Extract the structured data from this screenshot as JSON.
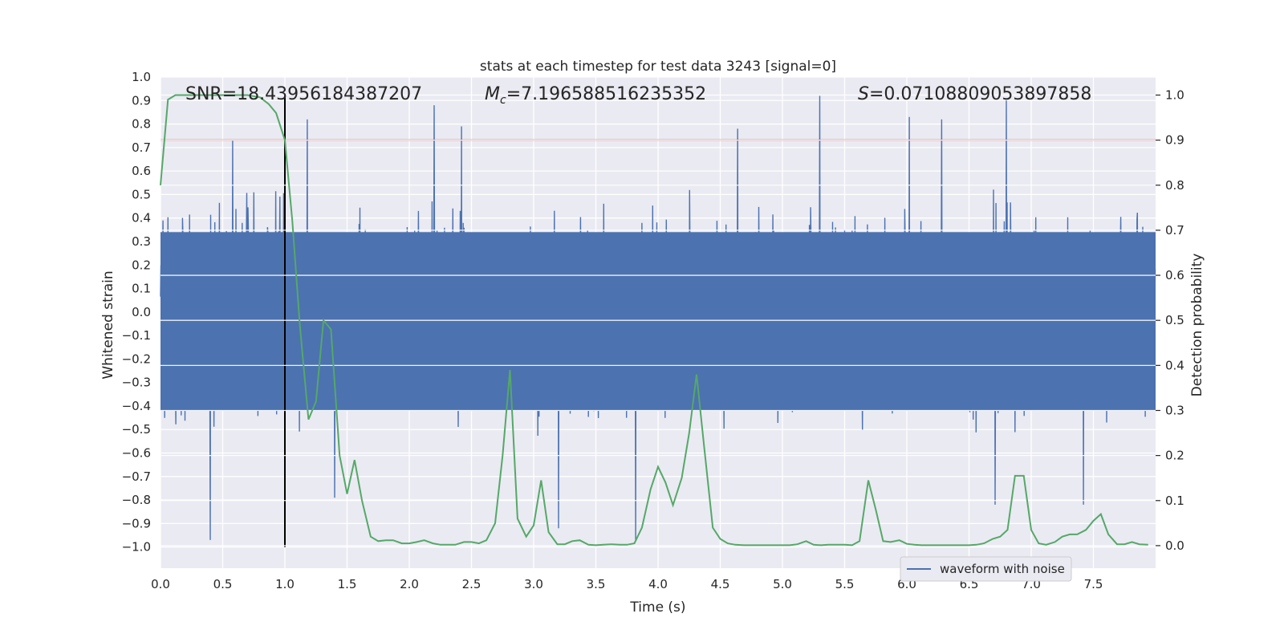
{
  "chart_data": {
    "type": "line",
    "title": "stats at each timestep for test data 3243 [signal=0]",
    "xlabel": "Time (s)",
    "ylabel": "Whitened strain",
    "ylabel_right": "Detection probability",
    "xlim": [
      0.0,
      8.0
    ],
    "ylim": [
      -1.09,
      1.0
    ],
    "ylim_right": [
      -0.05,
      1.04
    ],
    "x_ticks": [
      "0.0",
      "0.5",
      "1.0",
      "1.5",
      "2.0",
      "2.5",
      "3.0",
      "3.5",
      "4.0",
      "4.5",
      "5.0",
      "5.5",
      "6.0",
      "6.5",
      "7.0",
      "7.5"
    ],
    "x_tick_values": [
      0.0,
      0.5,
      1.0,
      1.5,
      2.0,
      2.5,
      3.0,
      3.5,
      4.0,
      4.5,
      5.0,
      5.5,
      6.0,
      6.5,
      7.0,
      7.5
    ],
    "y_ticks": [
      "1.0",
      "0.9",
      "0.8",
      "0.7",
      "0.6",
      "0.5",
      "0.4",
      "0.3",
      "0.2",
      "0.1",
      "0.0",
      "−0.1",
      "−0.2",
      "−0.3",
      "−0.4",
      "−0.5",
      "−0.6",
      "−0.7",
      "−0.8",
      "−0.9",
      "−1.0"
    ],
    "y_tick_values": [
      1.0,
      0.9,
      0.8,
      0.7,
      0.6,
      0.5,
      0.4,
      0.3,
      0.2,
      0.1,
      0.0,
      -0.1,
      -0.2,
      -0.3,
      -0.4,
      -0.5,
      -0.6,
      -0.7,
      -0.8,
      -0.9,
      -1.0
    ],
    "y_right_ticks": [
      "1.0",
      "0.9",
      "0.8",
      "0.7",
      "0.6",
      "0.5",
      "0.4",
      "0.3",
      "0.2",
      "0.1",
      "0.0"
    ],
    "y_right_tick_values": [
      1.0,
      0.9,
      0.8,
      0.7,
      0.6,
      0.5,
      0.4,
      0.3,
      0.2,
      0.1,
      0.0
    ],
    "annotations": {
      "snr": "SNR=18.43956184387207",
      "mc_symbol": "M",
      "mc_subscript": "c",
      "mc_value": "=7.196588516235352",
      "s_symbol": "S",
      "s_value": "=0.07108809053897858"
    },
    "threshold": {
      "name": "threshold",
      "y_right": 0.9,
      "color": "#c44e52"
    },
    "vline": {
      "name": "marker",
      "x": 1.0,
      "color": "#000000"
    },
    "waveform": {
      "name": "waveform with noise",
      "color": "#4c72b0",
      "description_values": "dense noise, peaks ~±0.4 typical with spikes to ~0.9 and -0.97",
      "spikes": [
        {
          "x": 0.4,
          "y": -0.97
        },
        {
          "x": 0.58,
          "y": 0.73
        },
        {
          "x": 1.18,
          "y": 0.82
        },
        {
          "x": 1.4,
          "y": -0.79
        },
        {
          "x": 2.2,
          "y": 0.88
        },
        {
          "x": 2.42,
          "y": 0.79
        },
        {
          "x": 3.2,
          "y": -0.92
        },
        {
          "x": 3.82,
          "y": -0.97
        },
        {
          "x": 4.64,
          "y": 0.78
        },
        {
          "x": 5.3,
          "y": 0.92
        },
        {
          "x": 6.02,
          "y": 0.83
        },
        {
          "x": 6.28,
          "y": 0.82
        },
        {
          "x": 6.8,
          "y": 0.9
        },
        {
          "x": 6.71,
          "y": -0.82
        },
        {
          "x": 7.42,
          "y": -0.82
        }
      ]
    },
    "probability": {
      "name": "detection probability",
      "color": "#55a868",
      "x": [
        0.0,
        0.06,
        0.12,
        0.2,
        0.3,
        0.4,
        0.5,
        0.6,
        0.7,
        0.8,
        0.87,
        0.93,
        1.0,
        1.06,
        1.12,
        1.19,
        1.25,
        1.31,
        1.37,
        1.44,
        1.5,
        1.56,
        1.62,
        1.69,
        1.75,
        1.81,
        1.87,
        1.94,
        2.0,
        2.06,
        2.12,
        2.19,
        2.25,
        2.31,
        2.37,
        2.44,
        2.5,
        2.56,
        2.62,
        2.69,
        2.75,
        2.81,
        2.87,
        2.94,
        3.0,
        3.06,
        3.12,
        3.19,
        3.25,
        3.31,
        3.37,
        3.44,
        3.5,
        3.56,
        3.62,
        3.69,
        3.75,
        3.81,
        3.87,
        3.94,
        4.0,
        4.06,
        4.12,
        4.19,
        4.25,
        4.31,
        4.37,
        4.44,
        4.5,
        4.56,
        4.62,
        4.69,
        4.75,
        4.81,
        4.87,
        4.94,
        5.0,
        5.06,
        5.12,
        5.19,
        5.25,
        5.31,
        5.37,
        5.44,
        5.5,
        5.56,
        5.62,
        5.69,
        5.75,
        5.81,
        5.87,
        5.94,
        6.0,
        6.06,
        6.12,
        6.19,
        6.25,
        6.31,
        6.37,
        6.44,
        6.5,
        6.56,
        6.62,
        6.69,
        6.75,
        6.81,
        6.87,
        6.94,
        7.0,
        7.06,
        7.12,
        7.19,
        7.25,
        7.31,
        7.37,
        7.44,
        7.5,
        7.56,
        7.62,
        7.69,
        7.75,
        7.81,
        7.87,
        7.94
      ],
      "values": [
        0.8,
        0.99,
        1.0,
        1.0,
        1.0,
        1.0,
        1.0,
        1.0,
        1.0,
        0.995,
        0.98,
        0.96,
        0.9,
        0.72,
        0.49,
        0.28,
        0.32,
        0.5,
        0.48,
        0.2,
        0.115,
        0.19,
        0.1,
        0.02,
        0.01,
        0.012,
        0.012,
        0.005,
        0.005,
        0.008,
        0.012,
        0.005,
        0.002,
        0.002,
        0.002,
        0.008,
        0.008,
        0.005,
        0.012,
        0.05,
        0.2,
        0.39,
        0.06,
        0.02,
        0.045,
        0.145,
        0.03,
        0.003,
        0.003,
        0.01,
        0.012,
        0.002,
        0.001,
        0.002,
        0.003,
        0.002,
        0.002,
        0.005,
        0.04,
        0.125,
        0.175,
        0.14,
        0.09,
        0.15,
        0.25,
        0.38,
        0.22,
        0.04,
        0.015,
        0.005,
        0.002,
        0.001,
        0.001,
        0.001,
        0.001,
        0.001,
        0.001,
        0.001,
        0.003,
        0.01,
        0.002,
        0.001,
        0.002,
        0.002,
        0.002,
        0.001,
        0.01,
        0.145,
        0.08,
        0.01,
        0.008,
        0.012,
        0.004,
        0.002,
        0.001,
        0.001,
        0.001,
        0.001,
        0.001,
        0.001,
        0.001,
        0.002,
        0.005,
        0.015,
        0.02,
        0.035,
        0.155,
        0.155,
        0.035,
        0.005,
        0.002,
        0.008,
        0.02,
        0.025,
        0.025,
        0.035,
        0.055,
        0.07,
        0.025,
        0.003,
        0.003,
        0.008,
        0.003,
        0.002
      ]
    },
    "legend": {
      "label": "waveform with noise",
      "placement": "lower-right"
    },
    "grid": true
  }
}
